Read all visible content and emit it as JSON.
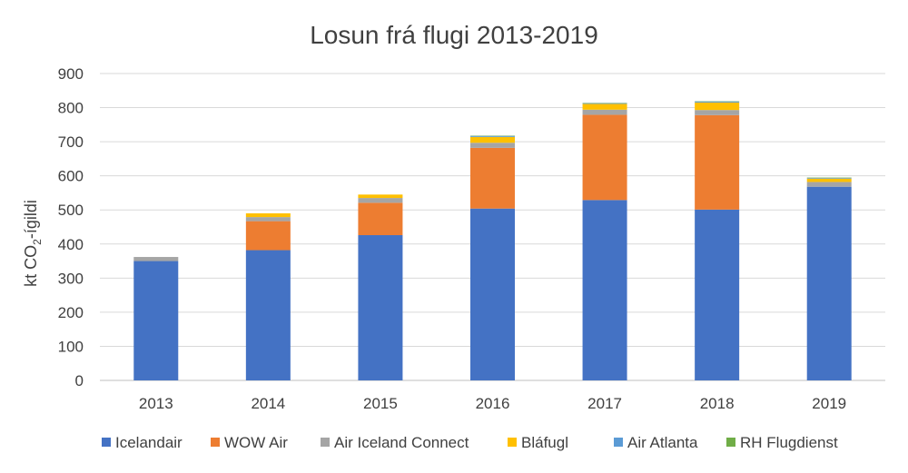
{
  "chart_data": {
    "type": "bar",
    "stacked": true,
    "title": "Losun frá flugi 2013-2019",
    "ylabel": {
      "prefix": "kt CO",
      "subscript": "2",
      "suffix": "-ígildi"
    },
    "xlabel": "",
    "ylim": [
      0,
      900
    ],
    "yticks": [
      0,
      100,
      200,
      300,
      400,
      500,
      600,
      700,
      800,
      900
    ],
    "grid": true,
    "legend_position": "bottom",
    "categories": [
      "2013",
      "2014",
      "2015",
      "2016",
      "2017",
      "2018",
      "2019"
    ],
    "series": [
      {
        "name": "Icelandair",
        "color": "#4472C4",
        "values": [
          350,
          382,
          426,
          504,
          529,
          501,
          568
        ]
      },
      {
        "name": "WOW Air",
        "color": "#ED7D31",
        "values": [
          0,
          85,
          95,
          178,
          250,
          277,
          0
        ]
      },
      {
        "name": "Air Iceland Connect",
        "color": "#A5A5A5",
        "values": [
          12,
          12,
          14,
          15,
          15,
          15,
          14
        ]
      },
      {
        "name": "Bláfugl",
        "color": "#FFC000",
        "values": [
          0,
          11,
          10,
          17,
          17,
          22,
          10
        ]
      },
      {
        "name": "Air Atlanta",
        "color": "#5B9BD5",
        "values": [
          0,
          0,
          0,
          3,
          2,
          3,
          2
        ]
      },
      {
        "name": "RH Flugdienst",
        "color": "#70AD47",
        "values": [
          0,
          0,
          0,
          1,
          1,
          1,
          1
        ]
      }
    ]
  }
}
